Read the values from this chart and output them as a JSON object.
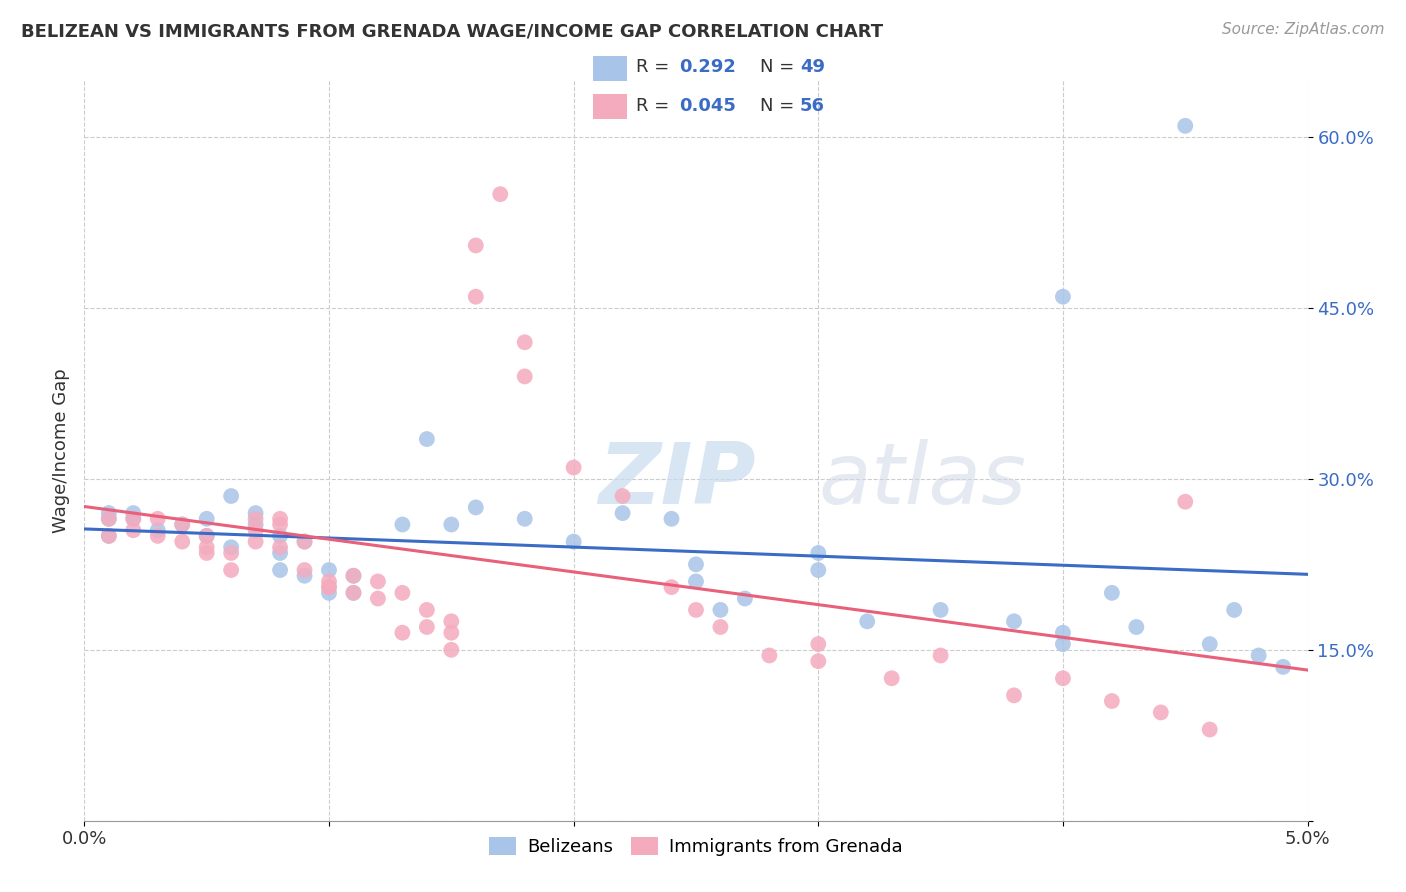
{
  "title": "BELIZEAN VS IMMIGRANTS FROM GRENADA WAGE/INCOME GAP CORRELATION CHART",
  "source": "Source: ZipAtlas.com",
  "ylabel": "Wage/Income Gap",
  "legend1_R": "0.292",
  "legend1_N": "49",
  "legend2_R": "0.045",
  "legend2_N": "56",
  "blue_color": "#A8C4E8",
  "pink_color": "#F4ABBE",
  "blue_line_color": "#3B6CC5",
  "pink_line_color": "#E8607A",
  "watermark_color": "#D8E8F5",
  "blue_points_x": [
    0.001,
    0.001,
    0.001,
    0.002,
    0.002,
    0.003,
    0.004,
    0.005,
    0.005,
    0.006,
    0.006,
    0.007,
    0.007,
    0.008,
    0.008,
    0.008,
    0.009,
    0.009,
    0.01,
    0.01,
    0.011,
    0.011,
    0.013,
    0.014,
    0.015,
    0.016,
    0.018,
    0.02,
    0.022,
    0.024,
    0.025,
    0.025,
    0.026,
    0.027,
    0.03,
    0.03,
    0.032,
    0.035,
    0.038,
    0.04,
    0.04,
    0.042,
    0.043,
    0.046,
    0.047,
    0.048,
    0.049,
    0.04,
    0.045
  ],
  "blue_points_y": [
    0.265,
    0.25,
    0.27,
    0.27,
    0.265,
    0.255,
    0.26,
    0.25,
    0.265,
    0.24,
    0.285,
    0.27,
    0.26,
    0.25,
    0.235,
    0.22,
    0.245,
    0.215,
    0.22,
    0.2,
    0.215,
    0.2,
    0.26,
    0.335,
    0.26,
    0.275,
    0.265,
    0.245,
    0.27,
    0.265,
    0.225,
    0.21,
    0.185,
    0.195,
    0.235,
    0.22,
    0.175,
    0.185,
    0.175,
    0.155,
    0.165,
    0.2,
    0.17,
    0.155,
    0.185,
    0.145,
    0.135,
    0.46,
    0.61
  ],
  "pink_points_x": [
    0.001,
    0.001,
    0.002,
    0.002,
    0.003,
    0.003,
    0.004,
    0.004,
    0.005,
    0.005,
    0.005,
    0.006,
    0.006,
    0.007,
    0.007,
    0.007,
    0.008,
    0.008,
    0.008,
    0.009,
    0.009,
    0.01,
    0.01,
    0.01,
    0.011,
    0.011,
    0.012,
    0.012,
    0.013,
    0.013,
    0.014,
    0.014,
    0.015,
    0.015,
    0.015,
    0.016,
    0.016,
    0.017,
    0.018,
    0.018,
    0.02,
    0.022,
    0.024,
    0.025,
    0.026,
    0.028,
    0.03,
    0.03,
    0.033,
    0.035,
    0.038,
    0.04,
    0.042,
    0.044,
    0.046,
    0.045
  ],
  "pink_points_y": [
    0.265,
    0.25,
    0.265,
    0.255,
    0.265,
    0.25,
    0.26,
    0.245,
    0.25,
    0.235,
    0.24,
    0.235,
    0.22,
    0.245,
    0.265,
    0.255,
    0.265,
    0.26,
    0.24,
    0.245,
    0.22,
    0.21,
    0.205,
    0.205,
    0.2,
    0.215,
    0.21,
    0.195,
    0.2,
    0.165,
    0.185,
    0.17,
    0.175,
    0.165,
    0.15,
    0.505,
    0.46,
    0.55,
    0.39,
    0.42,
    0.31,
    0.285,
    0.205,
    0.185,
    0.17,
    0.145,
    0.155,
    0.14,
    0.125,
    0.145,
    0.11,
    0.125,
    0.105,
    0.095,
    0.08,
    0.28
  ],
  "x_min": 0.0,
  "x_max": 0.05,
  "y_min": 0.0,
  "y_max": 0.65,
  "ytick_vals": [
    0.0,
    0.15,
    0.3,
    0.45,
    0.6
  ],
  "ytick_labels": [
    "",
    "15.0%",
    "30.0%",
    "45.0%",
    "60.0%"
  ],
  "xtick_vals": [
    0.0,
    0.01,
    0.02,
    0.03,
    0.04,
    0.05
  ],
  "xtick_labels": [
    "0.0%",
    "",
    "",
    "",
    "",
    "5.0%"
  ]
}
